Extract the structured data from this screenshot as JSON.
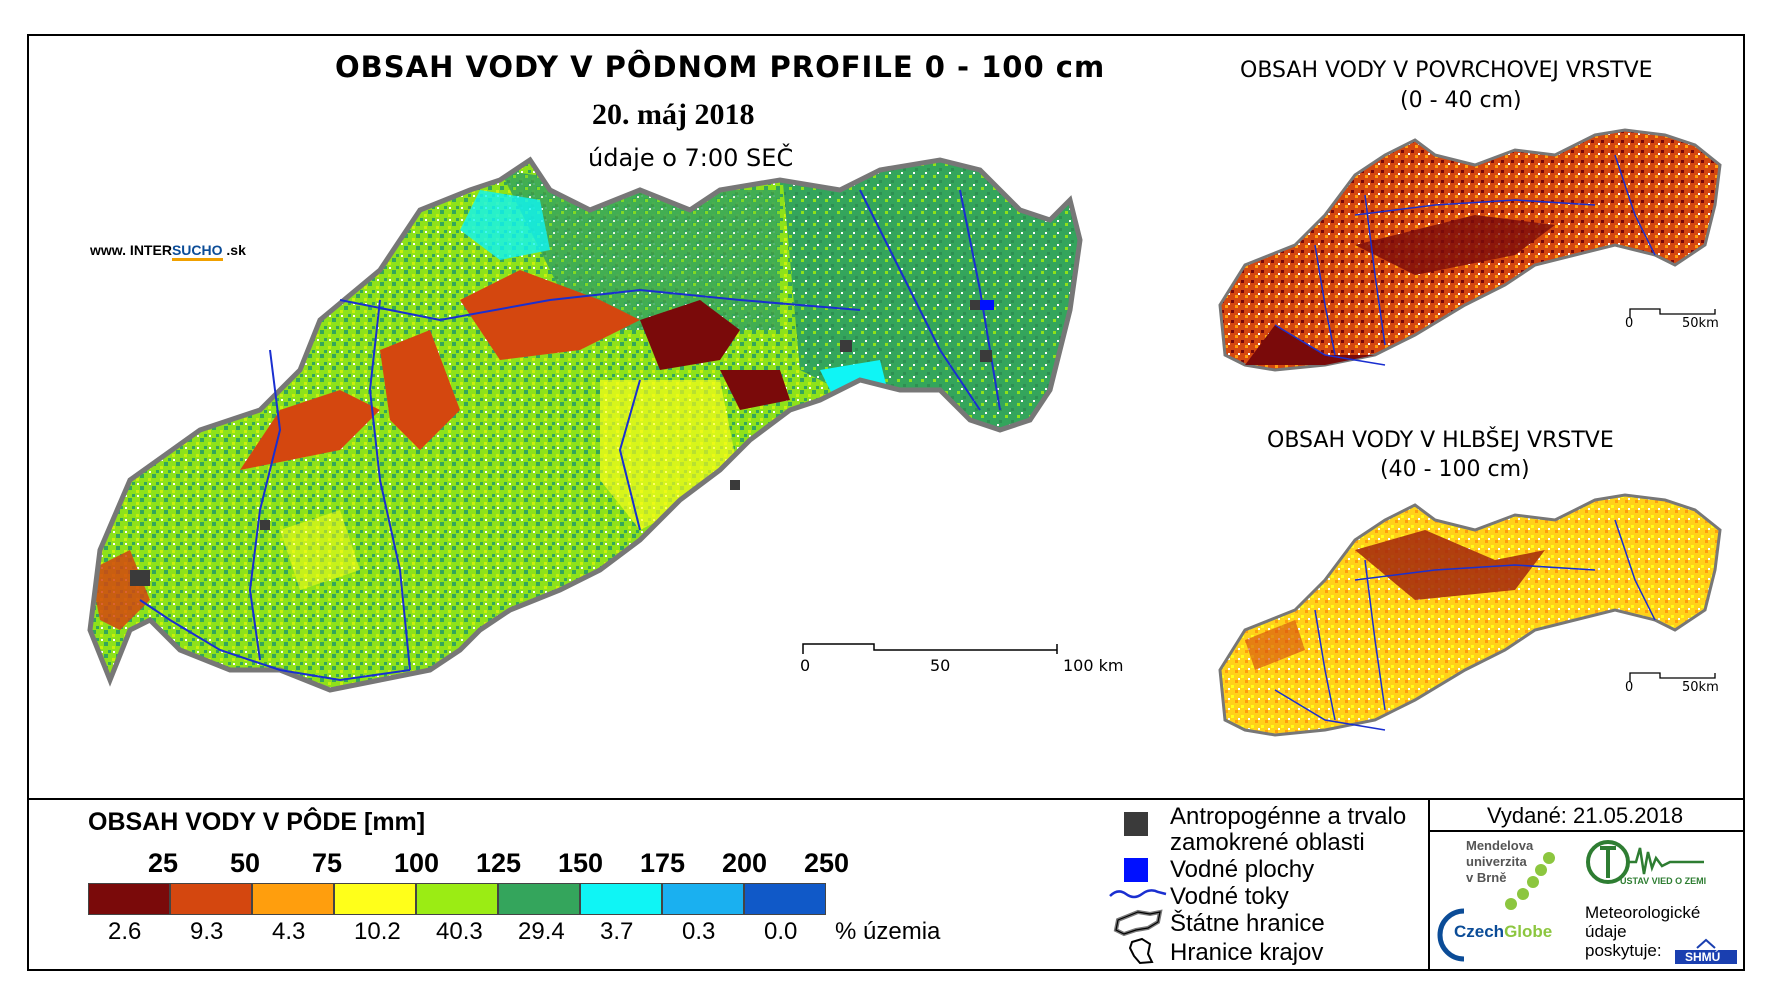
{
  "main_map": {
    "title": "OBSAH VODY V PÔDNOM PROFILE 0 - 100 cm",
    "date": "20. máj 2018",
    "subtitle": "údaje o 7:00 SEČ",
    "website_prefix": "www. INTER",
    "website_brand": "SUCHO",
    "website_suffix": " .sk",
    "scale": {
      "labels": [
        "0",
        "50",
        "100 km"
      ]
    }
  },
  "inset_surface": {
    "title_line1": "OBSAH VODY V POVRCHOVEJ VRSTVE",
    "title_line2": "(0 - 40 cm)",
    "scale": {
      "labels": [
        "0",
        "50km"
      ]
    }
  },
  "inset_deep": {
    "title_line1": "OBSAH VODY V HLBŠEJ VRSTVE",
    "title_line2": "(40 - 100 cm)",
    "scale": {
      "labels": [
        "0",
        "50km"
      ]
    }
  },
  "legend": {
    "title": "OBSAH VODY V PÔDE [mm]",
    "thresholds": [
      "25",
      "50",
      "75",
      "100",
      "125",
      "150",
      "175",
      "200",
      "250"
    ],
    "classes": [
      {
        "color": "#7a0a0a",
        "percent": "2.6"
      },
      {
        "color": "#d4470f",
        "percent": "9.3"
      },
      {
        "color": "#ff9e0d",
        "percent": "4.3"
      },
      {
        "color": "#ffff1a",
        "percent": "10.2"
      },
      {
        "color": "#9bec14",
        "percent": "40.3"
      },
      {
        "color": "#34a55c",
        "percent": "29.4"
      },
      {
        "color": "#0ff5f5",
        "percent": "3.7"
      },
      {
        "color": "#1ab0f0",
        "percent": "0.3"
      },
      {
        "color": "#1059c8",
        "percent": "0.0"
      }
    ],
    "percent_unit": "% územia"
  },
  "symbols": {
    "anthropogenic_line1": "Antropogénne a trvalo",
    "anthropogenic_line2": "zamokrené oblasti",
    "water_bodies": "Vodné plochy",
    "rivers": "Vodné toky",
    "state_border": "Štátne hranice",
    "region_border": "Hranice krajov"
  },
  "issued": "Vydané: 21.05.2018",
  "logos": {
    "mendel_line1": "Mendelova",
    "mendel_line2": "univerzita",
    "mendel_line3": "v Brně",
    "czechglobe_a": "Czech",
    "czechglobe_b": "Globe",
    "ustav": "ÚSTAV VIED O ZEMI",
    "shmu": "SHMÚ",
    "meteo_line1": "Meteorologické",
    "meteo_line2": "údaje",
    "meteo_line3": "poskytuje:"
  },
  "colors": {
    "frame": "#000000",
    "rivers": "#1a2fd0",
    "water_bodies": "#0010ff",
    "anthropogenic": "#3a3a3a",
    "brand_blue": "#0b4c97",
    "brand_orange": "#f0a000"
  }
}
